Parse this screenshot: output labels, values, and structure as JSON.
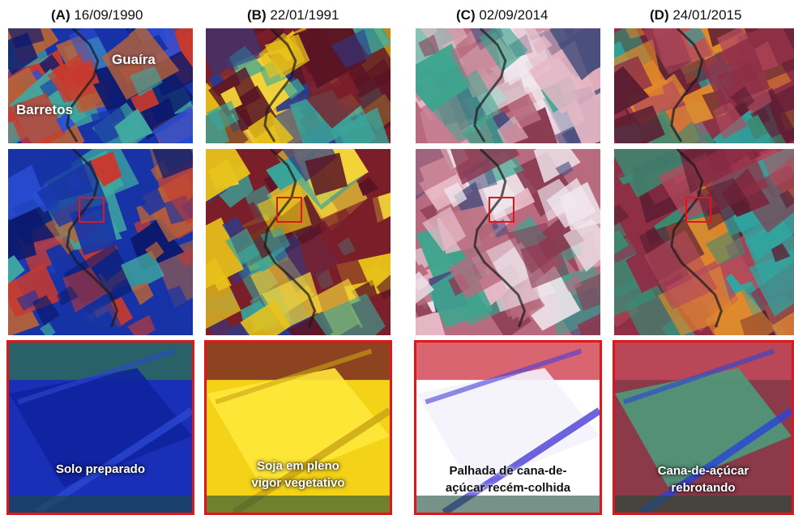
{
  "panels": [
    {
      "letter": "(A)",
      "date": "16/09/1990",
      "overview_labels": [
        "Guaíra",
        "Barretos"
      ],
      "caption_lines": [
        "Solo preparado"
      ],
      "palette": {
        "base": "#1733a6",
        "a": "#2a4fd8",
        "b": "#b4623a",
        "c": "#3fa8a0",
        "d": "#0b1a6e",
        "e": "#c73a2f"
      }
    },
    {
      "letter": "(B)",
      "date": "22/01/1991",
      "overview_labels": [],
      "caption_lines": [
        "Soja em pleno",
        "vigor vegetativo"
      ],
      "palette": {
        "base": "#7a1f2a",
        "a": "#e8c21a",
        "b": "#2b3b8c",
        "c": "#3aa59a",
        "d": "#5a1424",
        "e": "#f2d43a"
      }
    },
    {
      "letter": "(C)",
      "date": "02/09/2014",
      "overview_labels": [],
      "caption_lines": [
        "Palhada de cana-de-",
        "açúcar recém-colhida"
      ],
      "palette": {
        "base": "#b86a7e",
        "a": "#f0e8ee",
        "b": "#4b4f7e",
        "c": "#3ea58e",
        "d": "#8a3a52",
        "e": "#e6b7c4"
      }
    },
    {
      "letter": "(D)",
      "date": "24/01/2015",
      "overview_labels": [],
      "caption_lines": [
        "Cana-de-açúcar",
        "rebrotando"
      ],
      "palette": {
        "base": "#8e2f46",
        "a": "#3b8a72",
        "b": "#b34b5c",
        "c": "#2fa6a0",
        "d": "#5c1e33",
        "e": "#e28a2a"
      }
    }
  ],
  "zoom_colors": [
    {
      "bg": "#1a2fb8",
      "field": "#0f24a0",
      "edge": "#2c6a58",
      "stripe": "#2b48d0"
    },
    {
      "bg": "#f3d218",
      "field": "#ffe83a",
      "edge": "#7a2a22",
      "stripe": "#c9a515"
    },
    {
      "bg": "#ffffff",
      "field": "#f4f2fb",
      "edge": "#d24a58",
      "stripe": "#4a3ed8"
    },
    {
      "bg": "#8a3a48",
      "field": "#4d9a7a",
      "edge": "#c24a5a",
      "stripe": "#2a44d8"
    }
  ]
}
